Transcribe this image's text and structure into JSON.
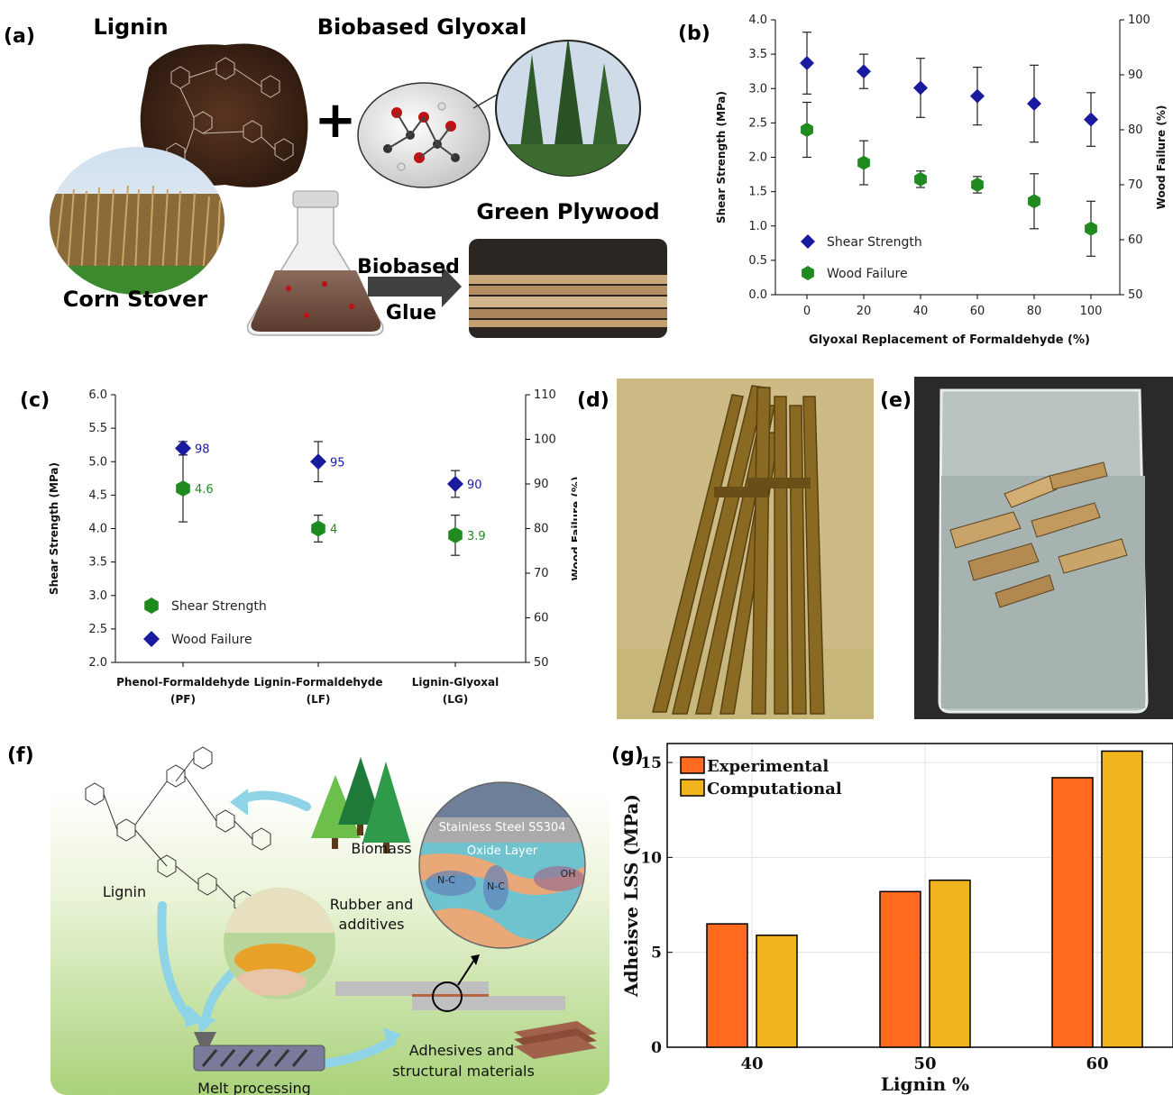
{
  "panels": {
    "a": {
      "label": "(a)",
      "lignin": "Lignin",
      "glyoxal": "Biobased Glyoxal",
      "plus": "+",
      "corn": "Corn Stover",
      "green_plywood": "Green Plywood",
      "glue_line1": "Biobased",
      "glue_line2": "Glue"
    },
    "b": {
      "label": "(b)"
    },
    "c": {
      "label": "(c)"
    },
    "d": {
      "label": "(d)"
    },
    "e": {
      "label": "(e)"
    },
    "f": {
      "label": "(f)",
      "lignin": "Lignin",
      "biomass": "Biomass",
      "rubber_line1": "Rubber and",
      "rubber_line2": "additives",
      "steel": "Stainless Steel SS304",
      "oxide": "Oxide Layer",
      "adh_line1": "Adhesives and",
      "adh_line2": "structural materials",
      "melt": "Melt processing",
      "nc1": "N-C",
      "nc2": "N-C",
      "oh": "OH"
    },
    "g": {
      "label": "(g)"
    }
  },
  "chart_data": [
    {
      "id": "b",
      "type": "scatter",
      "xlabel": "Glyoxal Replacement of Formaldehyde (%)",
      "ylabel": "Shear Strength (MPa)",
      "y2label": "Wood Failure (%)",
      "x": [
        0,
        20,
        40,
        60,
        80,
        100
      ],
      "xticks": [
        "0",
        "20",
        "40",
        "60",
        "80",
        "100"
      ],
      "ylim": [
        0,
        4
      ],
      "yticks": [
        "0.0",
        "0.5",
        "1.0",
        "1.5",
        "2.0",
        "2.5",
        "3.0",
        "3.5",
        "4.0"
      ],
      "y2lim": [
        50,
        100
      ],
      "y2ticks": [
        "50",
        "60",
        "70",
        "80",
        "90",
        "100"
      ],
      "legend": "bottom-left",
      "series": [
        {
          "name": "Shear Strength",
          "axis": "left",
          "marker": "diamond",
          "color": "#1a1a9e",
          "values": [
            3.37,
            3.25,
            3.01,
            2.89,
            2.78,
            2.55
          ],
          "err": [
            0.45,
            0.25,
            0.43,
            0.42,
            0.56,
            0.39
          ]
        },
        {
          "name": "Wood Failure",
          "axis": "right",
          "marker": "hexagon",
          "color": "#1f8a1f",
          "values": [
            80,
            74,
            71,
            70,
            67,
            62
          ],
          "err": [
            5,
            4,
            1.5,
            1.5,
            5,
            5
          ]
        }
      ]
    },
    {
      "id": "c",
      "type": "scatter",
      "xlabel": "",
      "ylabel": "Shear Strength (MPa)",
      "y2label": "Wood Failure (%)",
      "categories": [
        [
          "Phenol-Formaldehyde",
          "(PF)"
        ],
        [
          "Lignin-Formaldehyde",
          "(LF)"
        ],
        [
          "Lignin-Glyoxal",
          "(LG)"
        ]
      ],
      "ylim": [
        2,
        6
      ],
      "yticks": [
        "2.0",
        "2.5",
        "3.0",
        "3.5",
        "4.0",
        "4.5",
        "5.0",
        "5.5",
        "6.0"
      ],
      "y2lim": [
        50,
        110
      ],
      "y2ticks": [
        "50",
        "60",
        "70",
        "80",
        "90",
        "100",
        "110"
      ],
      "legend": "bottom-left",
      "series": [
        {
          "name": "Shear Strength",
          "axis": "left",
          "marker": "hexagon",
          "color": "#1f8a1f",
          "values": [
            4.6,
            4.0,
            3.9
          ],
          "labels": [
            "4.6",
            "4",
            "3.9"
          ],
          "err": [
            0.5,
            0.2,
            0.3
          ]
        },
        {
          "name": "Wood Failure",
          "axis": "right",
          "marker": "diamond",
          "color": "#1a1a9e",
          "values": [
            98,
            95,
            90
          ],
          "labels": [
            "98",
            "95",
            "90"
          ],
          "err": [
            1.5,
            4.5,
            3
          ]
        }
      ]
    },
    {
      "id": "g",
      "type": "bar",
      "xlabel": "Lignin %",
      "ylabel": "Adheisve LSS (MPa)",
      "categories": [
        "40",
        "50",
        "60"
      ],
      "ylim": [
        0,
        16
      ],
      "yticks": [
        0,
        5,
        10,
        15
      ],
      "legend": "top-left",
      "series": [
        {
          "name": "Experimental",
          "color": "#ff6a1e",
          "values": [
            6.5,
            8.2,
            14.2
          ]
        },
        {
          "name": "Computational",
          "color": "#f0b41e",
          "values": [
            5.9,
            8.8,
            15.6
          ]
        }
      ]
    }
  ]
}
